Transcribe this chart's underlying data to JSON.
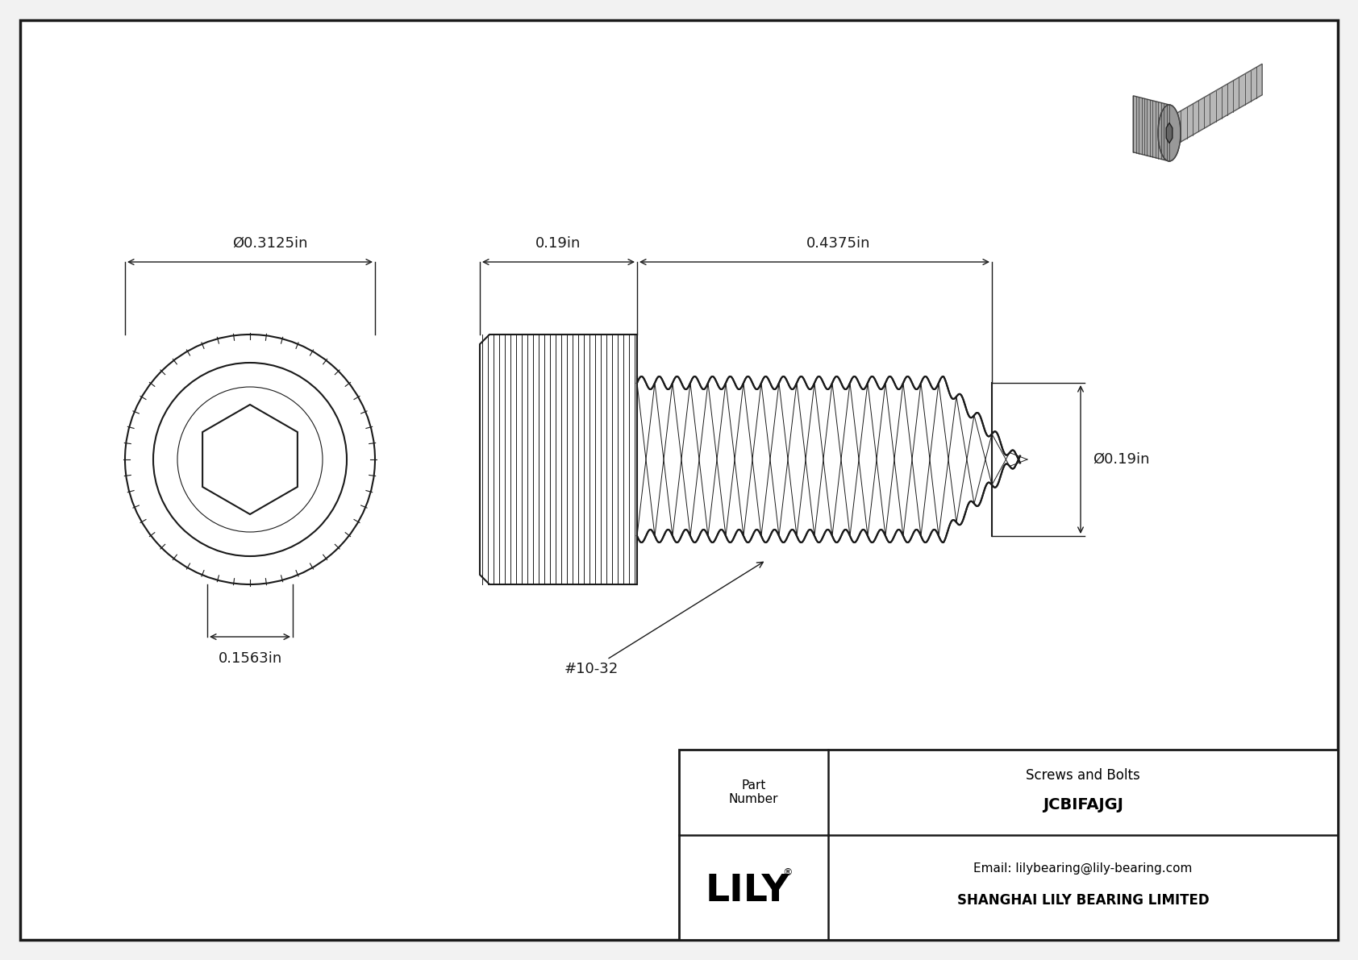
{
  "bg_color": "#f2f2f2",
  "line_color": "#1a1a1a",
  "title_company": "SHANGHAI LILY BEARING LIMITED",
  "title_email": "Email: lilybearing@lily-bearing.com",
  "part_number": "JCBIFAJGJ",
  "part_category": "Screws and Bolts",
  "part_label": "Part\nNumber",
  "dim_head_dia": "Ø0.3125in",
  "dim_socket": "0.1563in",
  "dim_head_len": "0.19in",
  "dim_thread_len": "0.4375in",
  "dim_thread_dia": "Ø0.19in",
  "dim_thread_label": "#10-32",
  "lily_text": "LILY",
  "lily_reg": "®"
}
